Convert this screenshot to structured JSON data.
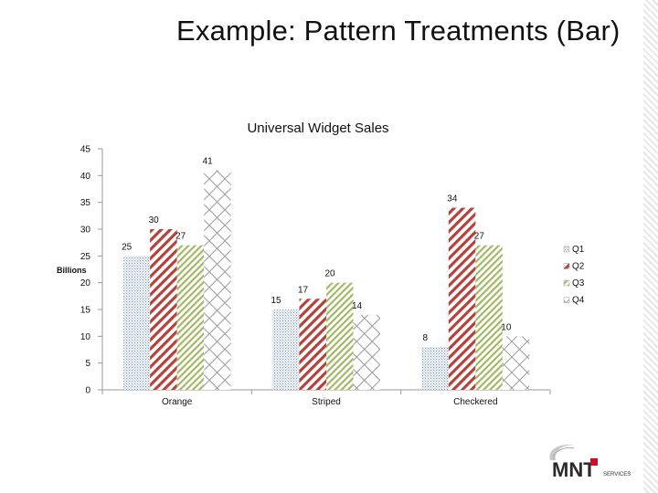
{
  "slide": {
    "title": "Example: Pattern Treatments (Bar)"
  },
  "logo": {
    "text": "MNT",
    "subtext": "SERVICES"
  },
  "chart_data": {
    "type": "bar",
    "title": "Universal Widget Sales",
    "ylabel": "Billions",
    "xlabel": "",
    "categories": [
      "Orange",
      "Striped",
      "Checkered"
    ],
    "series": [
      {
        "name": "Q1",
        "values": [
          25,
          15,
          8
        ],
        "pattern": "dots",
        "color": "#6f8fb0"
      },
      {
        "name": "Q2",
        "values": [
          30,
          17,
          34
        ],
        "pattern": "diagonal-stripes",
        "color": "#b5413b"
      },
      {
        "name": "Q3",
        "values": [
          27,
          20,
          27
        ],
        "pattern": "diagonal-stripes",
        "color": "#9cb25a"
      },
      {
        "name": "Q4",
        "values": [
          41,
          14,
          10
        ],
        "pattern": "checkered",
        "color": "#8a8a8a"
      }
    ],
    "ylim": [
      0,
      45
    ],
    "yticks": [
      "0",
      "5",
      "10",
      "15",
      "20",
      "25",
      "30",
      "35",
      "40",
      "45"
    ],
    "data_labels": true,
    "legend": "right",
    "grid": false
  }
}
